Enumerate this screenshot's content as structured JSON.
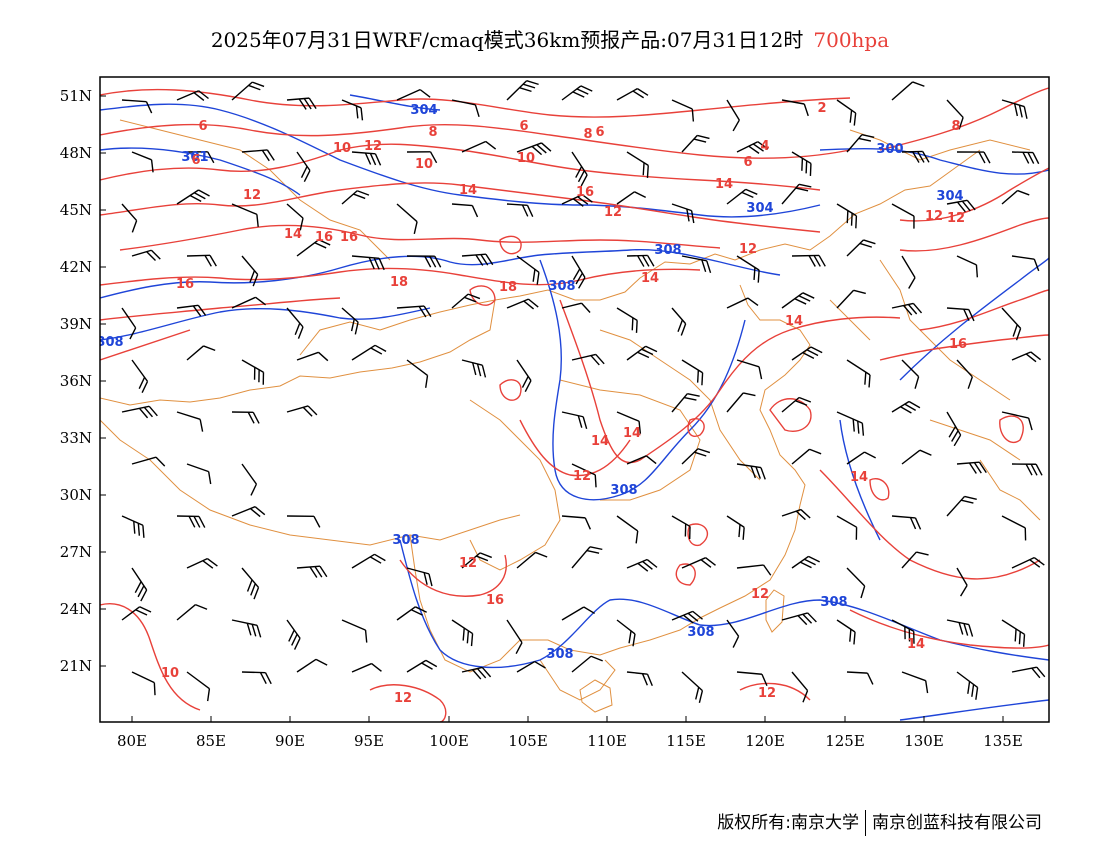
{
  "title": {
    "main": "2025年07月31日WRF/cmaq模式36km预报产品:07月31日12时",
    "level": "700hpa"
  },
  "axes": {
    "lat_ticks": [
      "51N",
      "48N",
      "45N",
      "42N",
      "39N",
      "36N",
      "33N",
      "30N",
      "27N",
      "24N",
      "21N"
    ],
    "lon_ticks": [
      "80E",
      "85E",
      "90E",
      "95E",
      "100E",
      "105E",
      "110E",
      "115E",
      "120E",
      "125E",
      "130E",
      "135E"
    ]
  },
  "contour_labels": {
    "height": [
      "304",
      "301",
      "300",
      "304",
      "308",
      "308",
      "308",
      "308",
      "308",
      "308",
      "308",
      "308",
      "304"
    ],
    "temperature": [
      "6",
      "8",
      "6",
      "8",
      "6",
      "2",
      "4",
      "6",
      "10",
      "12",
      "10",
      "14",
      "16",
      "12",
      "14",
      "10",
      "12",
      "14",
      "16",
      "16",
      "16",
      "18",
      "18",
      "14",
      "12",
      "14",
      "16",
      "10",
      "12",
      "12",
      "14",
      "14",
      "14",
      "12",
      "12",
      "16",
      "14",
      "12",
      "12",
      "8",
      "6",
      "12"
    ]
  },
  "colors": {
    "temperature_contour": "#e8413a",
    "height_contour": "#1f45d8",
    "boundary": "#e09040",
    "wind_barb": "#000000"
  },
  "footer": {
    "left": "版权所有:南京大学",
    "right": "南京创蓝科技有限公司"
  }
}
